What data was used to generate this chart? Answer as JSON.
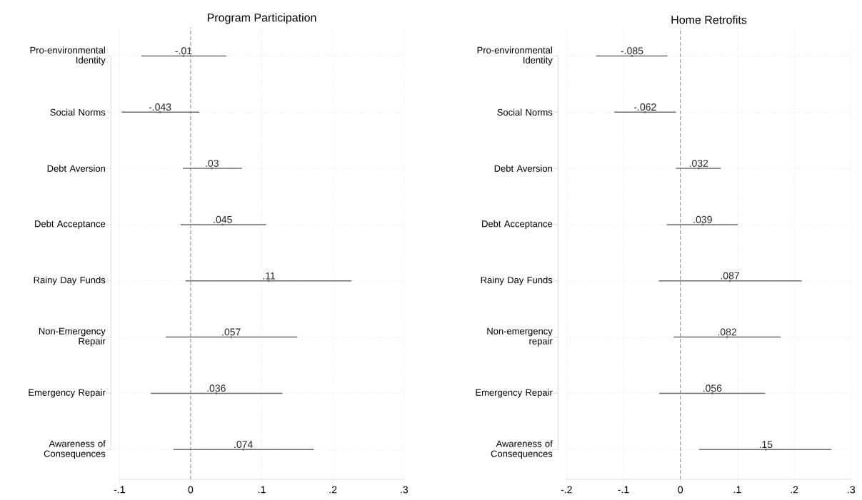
{
  "chart_data": [
    {
      "type": "scatter",
      "orientation": "horizontal",
      "title": "Program Participation",
      "categories": [
        "Pro-environmental Identity",
        "Social Norms",
        "Debt Aversion",
        "Debt Acceptance",
        "Rainy Day Funds",
        "Non-Emergency Repair",
        "Emergency Repair",
        "Awareness of Consequences"
      ],
      "values": [
        -0.01,
        -0.043,
        0.03,
        0.045,
        0.11,
        0.057,
        0.036,
        0.074
      ],
      "errors": [
        [
          -0.069,
          0.05
        ],
        [
          -0.097,
          0.012
        ],
        [
          -0.011,
          0.072
        ],
        [
          -0.014,
          0.106
        ],
        [
          -0.007,
          0.226
        ],
        [
          -0.035,
          0.15
        ],
        [
          -0.056,
          0.129
        ],
        [
          -0.024,
          0.173
        ]
      ],
      "value_labels": [
        "-.01",
        "-.043",
        ".03",
        ".045",
        ".11",
        ".057",
        ".036",
        ".074"
      ],
      "color": "#6e6e6e",
      "marker": "circle",
      "grid": true,
      "xlim": [
        -0.1,
        0.3
      ],
      "xticks": [
        {
          "value": -0.1,
          "label": "-.1"
        },
        0,
        {
          "value": 0.1,
          "label": ".1"
        },
        {
          "value": 0.2,
          "label": ".2"
        },
        {
          "value": 0.3,
          "label": ".3"
        }
      ],
      "ref_lines": [
        {
          "axis": "x",
          "value": 0,
          "line_style": "dashed",
          "color": "#8c8c8c"
        }
      ]
    },
    {
      "type": "scatter",
      "orientation": "horizontal",
      "title": "Home Retrofits",
      "categories": [
        "Pro-environmental Identity",
        "Social Norms",
        "Debt Aversion",
        "Debt Acceptance",
        "Rainy Day Funds",
        "Non-emergency repair",
        "Emergency Repair",
        "Awareness of Consequences"
      ],
      "values": [
        -0.085,
        -0.062,
        0.032,
        0.039,
        0.087,
        0.082,
        0.056,
        0.15
      ],
      "errors": [
        [
          -0.148,
          -0.023
        ],
        [
          -0.116,
          -0.008
        ],
        [
          -0.008,
          0.071
        ],
        [
          -0.024,
          0.101
        ],
        [
          -0.038,
          0.213
        ],
        [
          -0.012,
          0.176
        ],
        [
          -0.037,
          0.149
        ],
        [
          0.033,
          0.265
        ]
      ],
      "value_labels": [
        "-.085",
        "-.062",
        ".032",
        ".039",
        ".087",
        ".082",
        ".056",
        ".15"
      ],
      "color": "#6e6e6e",
      "marker": "circle",
      "grid": true,
      "xlim": [
        -0.2,
        0.3
      ],
      "xticks": [
        {
          "value": -0.2,
          "label": "-.2"
        },
        {
          "value": -0.1,
          "label": "-.1"
        },
        0,
        {
          "value": 0.1,
          "label": ".1"
        },
        {
          "value": 0.2,
          "label": ".2"
        },
        {
          "value": 0.3,
          "label": ".3"
        }
      ],
      "ref_lines": [
        {
          "axis": "x",
          "value": 0,
          "line_style": "dashed",
          "color": "#8c8c8c"
        }
      ]
    }
  ]
}
